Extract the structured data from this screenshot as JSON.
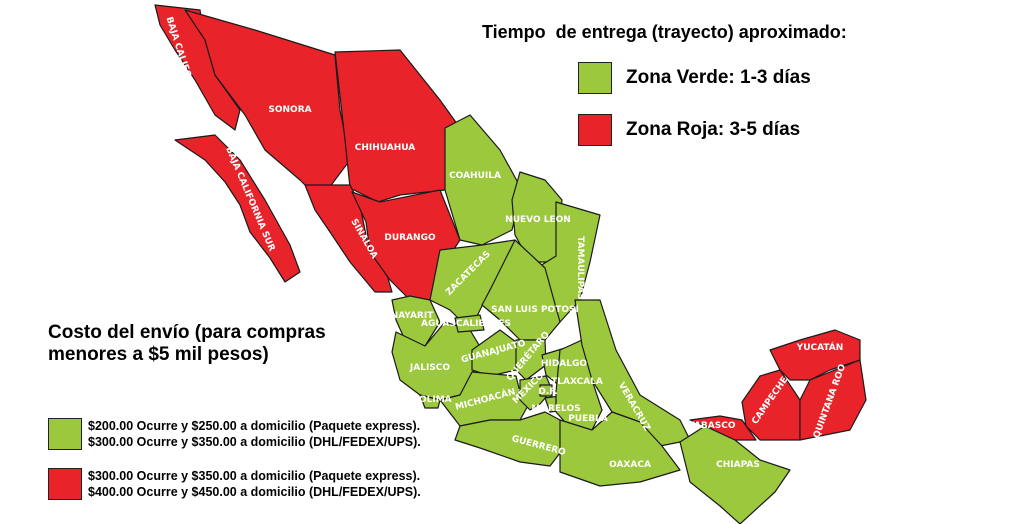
{
  "legend_time": {
    "title": "Tiempo  de entrega (trayecto) aproximado:",
    "zones": [
      {
        "label": "Zona Verde: 1-3 días",
        "color": "#9bc83c"
      },
      {
        "label": "Zona Roja: 3-5 días",
        "color": "#e8232a"
      }
    ]
  },
  "legend_cost": {
    "title": "Costo del envío (para compras menores a $5 mil pesos)",
    "rows": [
      {
        "color": "#9bc83c",
        "line1": "$200.00 Ocurre y $250.00 a domicilio (Paquete express).",
        "line2": "$300.00 Ocurre y $350.00 a domicilio (DHL/FEDEX/UPS)."
      },
      {
        "color": "#e8232a",
        "line1": "$300.00 Ocurre y $350.00 a domicilio (Paquete express).",
        "line2": "$400.00 Ocurre y $450.00 a domicilio (DHL/FEDEX/UPS)."
      }
    ]
  },
  "states": [
    {
      "name": "BAJA CALIFORNIA",
      "zone": "red"
    },
    {
      "name": "BAJA CALIFORNIA SUR",
      "zone": "red"
    },
    {
      "name": "SONORA",
      "zone": "red"
    },
    {
      "name": "CHIHUAHUA",
      "zone": "red"
    },
    {
      "name": "SINALOA",
      "zone": "red"
    },
    {
      "name": "DURANGO",
      "zone": "red"
    },
    {
      "name": "COAHUILA",
      "zone": "green"
    },
    {
      "name": "NUEVO LEON",
      "zone": "green"
    },
    {
      "name": "TAMAULIPAS",
      "zone": "green"
    },
    {
      "name": "ZACATECAS",
      "zone": "green"
    },
    {
      "name": "SAN LUIS POTOSÍ",
      "zone": "green"
    },
    {
      "name": "NAYARIT",
      "zone": "green"
    },
    {
      "name": "JALISCO",
      "zone": "green"
    },
    {
      "name": "AGUASCALIENTES",
      "zone": "green"
    },
    {
      "name": "GUANAJUATO",
      "zone": "green"
    },
    {
      "name": "QUERÉTARO",
      "zone": "green"
    },
    {
      "name": "HIDALGO",
      "zone": "green"
    },
    {
      "name": "MICHOACÁN",
      "zone": "green"
    },
    {
      "name": "MÉXICO",
      "zone": "green"
    },
    {
      "name": "D.F.",
      "zone": "green"
    },
    {
      "name": "MORELOS",
      "zone": "green"
    },
    {
      "name": "TLAXCALA",
      "zone": "green"
    },
    {
      "name": "PUEBLA",
      "zone": "green"
    },
    {
      "name": "VERACRUZ",
      "zone": "green"
    },
    {
      "name": "COLIMA",
      "zone": "green"
    },
    {
      "name": "GUERRERO",
      "zone": "green"
    },
    {
      "name": "OAXACA",
      "zone": "green"
    },
    {
      "name": "CHIAPAS",
      "zone": "green"
    },
    {
      "name": "TABASCO",
      "zone": "red"
    },
    {
      "name": "CAMPECHE",
      "zone": "red"
    },
    {
      "name": "YUCATÁN",
      "zone": "red"
    },
    {
      "name": "QUINTANA ROO",
      "zone": "red"
    }
  ],
  "colors": {
    "green": "#9bc83c",
    "red": "#e8232a"
  }
}
